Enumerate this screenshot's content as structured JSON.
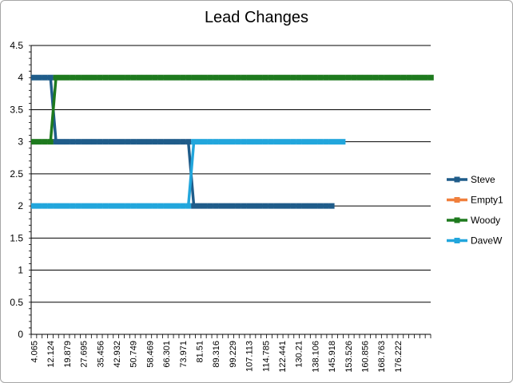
{
  "chart_data": {
    "type": "line",
    "title": "Lead Changes",
    "xlabel": "",
    "ylabel": "",
    "ylim": [
      0,
      4.5
    ],
    "y_ticks": [
      "0",
      "0.5",
      "1",
      "1.5",
      "2",
      "2.5",
      "3",
      "3.5",
      "4",
      "4.5"
    ],
    "grid": true,
    "legend_position": "right",
    "categories": [
      "4.065",
      "12.124",
      "19.879",
      "27.695",
      "35.456",
      "42.932",
      "50.749",
      "58.469",
      "66.301",
      "73.971",
      "81.51",
      "89.316",
      "99.229",
      "107.113",
      "114.785",
      "122.441",
      "130.21",
      "138.106",
      "145.918",
      "153.526",
      "160.856",
      "168.763",
      "176.222"
    ],
    "series": [
      {
        "name": "Steve",
        "color": "#1f5c8a",
        "segments": [
          {
            "from": 0,
            "to": 3,
            "value": 4
          },
          {
            "from": 4,
            "to": 28,
            "value": 3
          },
          {
            "from": 29,
            "to": 54,
            "value": 2
          }
        ]
      },
      {
        "name": "Empty1",
        "color": "#f07f3c",
        "segments": []
      },
      {
        "name": "Woody",
        "color": "#1e7a1e",
        "segments": [
          {
            "from": 0,
            "to": 3,
            "value": 3
          },
          {
            "from": 4,
            "to": 72,
            "value": 4
          }
        ]
      },
      {
        "name": "DaveW",
        "color": "#22a6dc",
        "segments": [
          {
            "from": 0,
            "to": 28,
            "value": 2
          },
          {
            "from": 29,
            "to": 56,
            "value": 3
          }
        ]
      }
    ]
  }
}
